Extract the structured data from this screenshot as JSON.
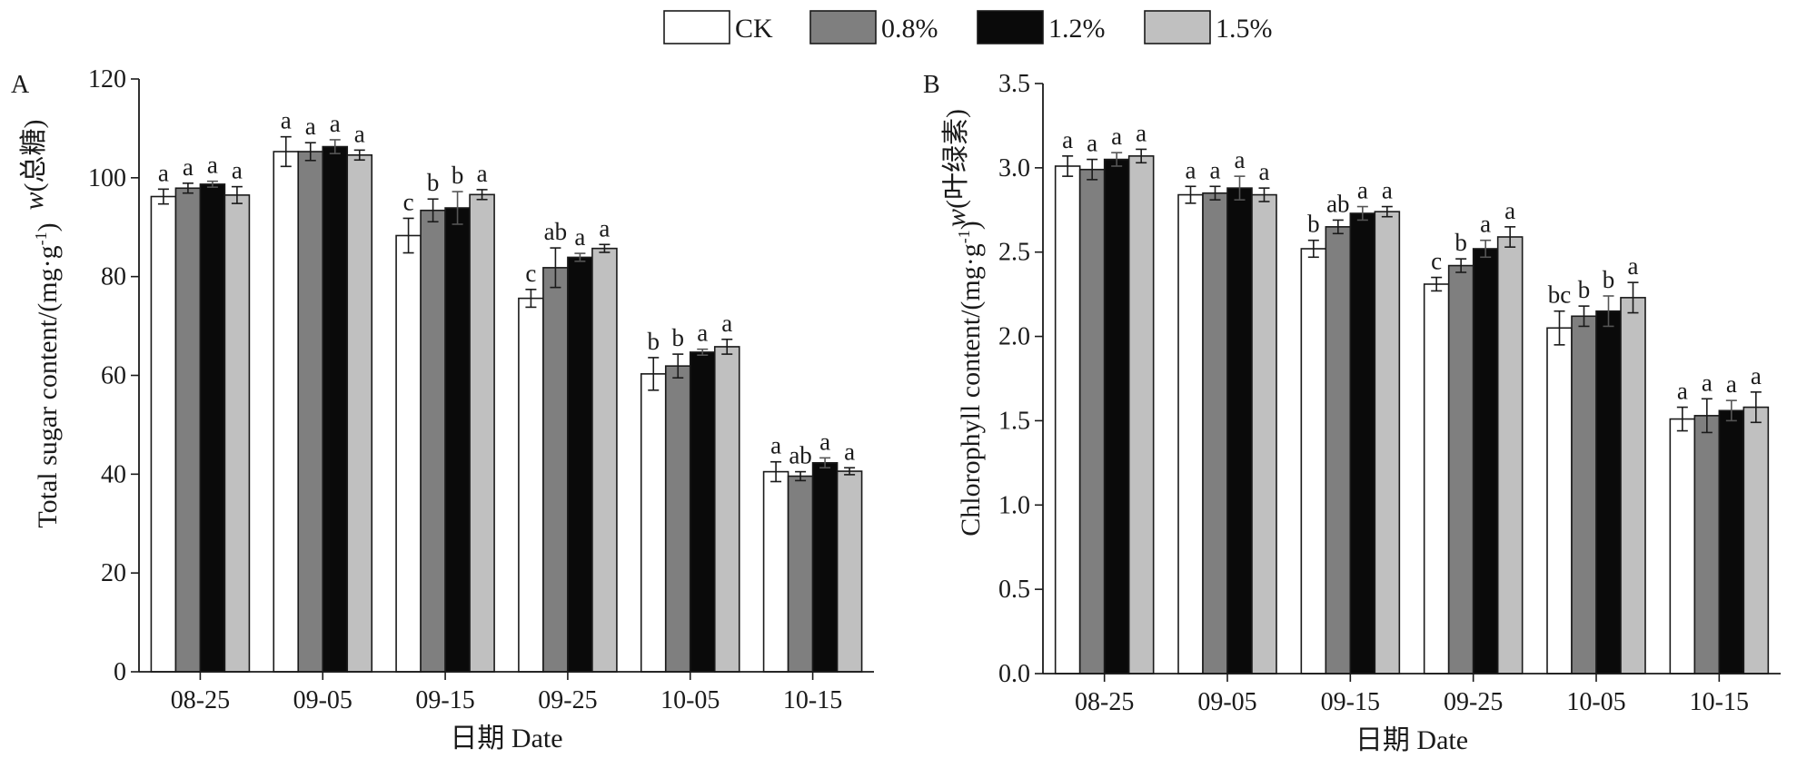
{
  "legend": [
    {
      "name": "CK",
      "color": "#ffffff"
    },
    {
      "name": "0.8%",
      "color": "#7f7f7f"
    },
    {
      "name": "1.2%",
      "color": "#0a0a0a"
    },
    {
      "name": "1.5%",
      "color": "#c0c0c0"
    }
  ],
  "chart_data": [
    {
      "type": "bar",
      "panel_label": "A",
      "title": "",
      "xlabel": "日期 Date",
      "ylabel": "w(总糖)",
      "ylabel_line2": "Total sugar content/(mg·g",
      "ylabel_exp": "-1",
      "ylabel_close": ")",
      "ylim": [
        0,
        120
      ],
      "yticks": [
        0,
        20,
        40,
        60,
        80,
        100,
        120
      ],
      "ytick_labels": [
        "0",
        "20",
        "40",
        "60",
        "80",
        "100",
        "120"
      ],
      "categories": [
        "08-25",
        "09-05",
        "09-15",
        "09-25",
        "10-05",
        "10-15"
      ],
      "series": [
        {
          "name": "CK",
          "values": [
            96.2,
            105.3,
            88.3,
            75.6,
            60.3,
            40.5
          ],
          "errors": [
            1.5,
            3.0,
            3.5,
            1.8,
            3.3,
            2.0
          ],
          "letters": [
            "a",
            "a",
            "c",
            "c",
            "b",
            "a"
          ]
        },
        {
          "name": "0.8%",
          "values": [
            97.9,
            105.3,
            93.4,
            81.8,
            61.9,
            39.6
          ],
          "errors": [
            1.0,
            1.8,
            2.3,
            4.0,
            2.4,
            0.9
          ],
          "letters": [
            "a",
            "a",
            "b",
            "ab",
            "b",
            "ab"
          ]
        },
        {
          "name": "1.2%",
          "values": [
            98.7,
            106.3,
            93.9,
            83.9,
            64.7,
            42.3
          ],
          "errors": [
            0.6,
            1.4,
            3.3,
            0.8,
            0.6,
            1.0
          ],
          "letters": [
            "a",
            "a",
            "b",
            "a",
            "a",
            "a"
          ]
        },
        {
          "name": "1.5%",
          "values": [
            96.5,
            104.6,
            96.6,
            85.7,
            65.8,
            40.6
          ],
          "errors": [
            1.7,
            1.0,
            1.0,
            0.8,
            1.5,
            0.7
          ],
          "letters": [
            "a",
            "a",
            "a",
            "a",
            "a",
            "a"
          ]
        }
      ]
    },
    {
      "type": "bar",
      "panel_label": "B",
      "title": "",
      "xlabel": "日期 Date",
      "ylabel": "w(叶绿素)",
      "ylabel_line2": "Chlorophyll content/(mg·g",
      "ylabel_exp": "-1",
      "ylabel_close": ")",
      "ylim": [
        0,
        3.5
      ],
      "yticks": [
        0,
        0.5,
        1.0,
        1.5,
        2.0,
        2.5,
        3.0,
        3.5
      ],
      "ytick_labels": [
        "0.0",
        "0.5",
        "1.0",
        "1.5",
        "2.0",
        "2.5",
        "3.0",
        "3.5"
      ],
      "categories": [
        "08-25",
        "09-05",
        "09-15",
        "09-25",
        "10-05",
        "10-15"
      ],
      "series": [
        {
          "name": "CK",
          "values": [
            3.01,
            2.84,
            2.52,
            2.31,
            2.05,
            1.51
          ],
          "errors": [
            0.06,
            0.05,
            0.05,
            0.04,
            0.1,
            0.07
          ],
          "letters": [
            "a",
            "a",
            "b",
            "c",
            "bc",
            "a"
          ]
        },
        {
          "name": "0.8%",
          "values": [
            2.99,
            2.85,
            2.65,
            2.42,
            2.12,
            1.53
          ],
          "errors": [
            0.06,
            0.04,
            0.04,
            0.04,
            0.06,
            0.1
          ],
          "letters": [
            "a",
            "a",
            "ab",
            "b",
            "b",
            "a"
          ]
        },
        {
          "name": "1.2%",
          "values": [
            3.05,
            2.88,
            2.73,
            2.52,
            2.15,
            1.56
          ],
          "errors": [
            0.04,
            0.07,
            0.04,
            0.05,
            0.09,
            0.06
          ],
          "letters": [
            "a",
            "a",
            "a",
            "a",
            "b",
            "a"
          ]
        },
        {
          "name": "1.5%",
          "values": [
            3.07,
            2.84,
            2.74,
            2.59,
            2.23,
            1.58
          ],
          "errors": [
            0.04,
            0.04,
            0.03,
            0.06,
            0.09,
            0.09
          ],
          "letters": [
            "a",
            "a",
            "a",
            "a",
            "a",
            "a"
          ]
        }
      ]
    }
  ]
}
